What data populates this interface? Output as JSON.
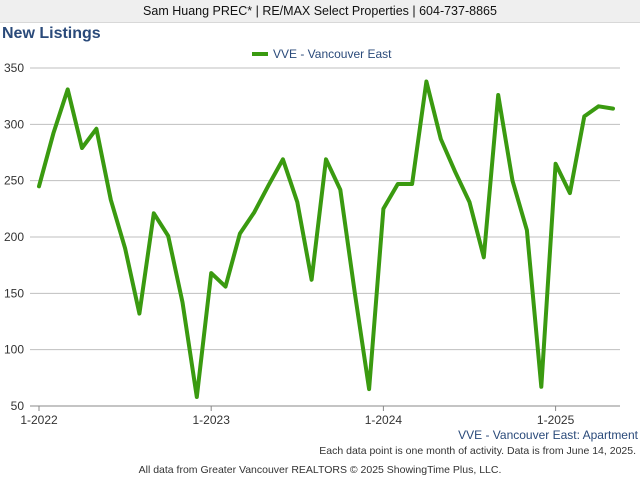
{
  "header": {
    "banner": "Sam Huang PREC* | RE/MAX Select Properties | 604-737-8865"
  },
  "page_title": "New Listings",
  "footer": {
    "note": "Each data point is one month of activity. Data is from June 14, 2025.",
    "source": "All data from Greater Vancouver REALTORS © 2025 ShowingTime Plus, LLC."
  },
  "colors": {
    "series_line": "#3a9a10",
    "grid": "#bfbfbf",
    "axis": "#888888",
    "title": "#2a4a7a",
    "series_label": "#2a4a7a"
  },
  "chart_data": {
    "type": "line",
    "title": "",
    "xlabel": "",
    "ylabel": "",
    "ylim": [
      50,
      350
    ],
    "yticks": [
      50,
      100,
      150,
      200,
      250,
      300,
      350
    ],
    "xticks": [
      "1-2022",
      "1-2023",
      "1-2024",
      "1-2025"
    ],
    "x_tick_month_index": [
      0,
      12,
      24,
      36
    ],
    "legend": "top-center",
    "grid": true,
    "caption": "VVE - Vancouver East: Apartment",
    "series": [
      {
        "name": "VVE - Vancouver East",
        "color": "#3a9a10",
        "values": [
          245,
          292,
          331,
          279,
          296,
          233,
          190,
          132,
          221,
          201,
          142,
          58,
          168,
          156,
          203,
          222,
          246,
          269,
          231,
          162,
          269,
          242,
          151,
          65,
          225,
          247,
          247,
          338,
          287,
          258,
          231,
          182,
          326,
          250,
          206,
          67,
          265,
          239,
          307,
          316,
          314
        ]
      }
    ]
  }
}
